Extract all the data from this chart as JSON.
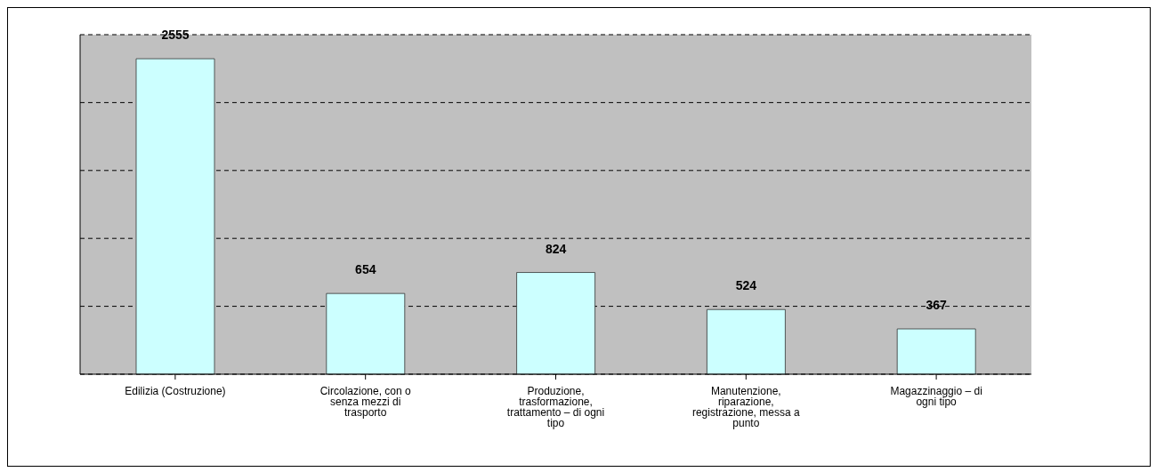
{
  "chart_data": {
    "type": "bar",
    "categories": [
      "Edilizia (Costruzione)",
      "Circolazione, con o senza mezzi di trasporto",
      "Produzione, trasformazione, trattamento – di ogni tipo",
      "Manutenzione, riparazione, registrazione, messa a punto",
      "Magazzinaggio – di ogni tipo"
    ],
    "values": [
      2555,
      654,
      824,
      524,
      367
    ],
    "color": "#ccffff",
    "data_labels": true,
    "grid": "y",
    "legend": false,
    "tick_labels": "x"
  }
}
